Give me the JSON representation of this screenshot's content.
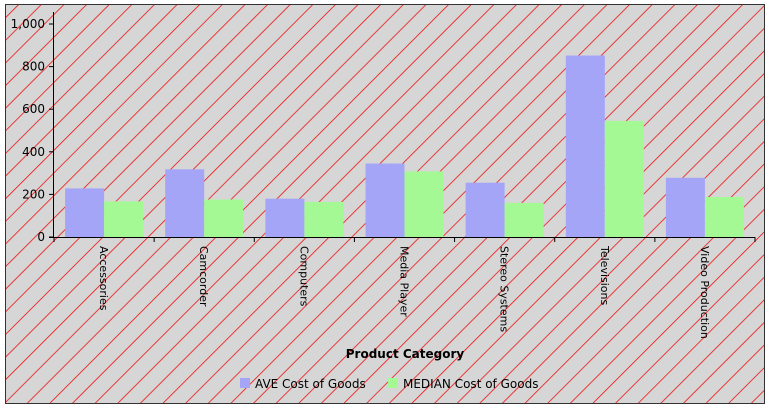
{
  "chart_data": {
    "type": "bar",
    "title": "",
    "xlabel": "Product Category",
    "ylabel": "",
    "categories": [
      "Accessories",
      "Camcorder",
      "Computers",
      "Media Player",
      "Stereo Systems",
      "Televisions",
      "Video Production"
    ],
    "series": [
      {
        "name": "AVE Cost of Goods",
        "color": "#A5A5F8",
        "values": [
          228,
          318,
          180,
          345,
          255,
          852,
          278
        ]
      },
      {
        "name": "MEDIAN Cost of Goods",
        "color": "#A5F995",
        "values": [
          167,
          176,
          165,
          308,
          160,
          545,
          188
        ]
      }
    ],
    "ylim": [
      0,
      1000
    ],
    "yticks": [
      0,
      200,
      400,
      600,
      800,
      1000
    ],
    "ytick_labels": [
      "0",
      "200",
      "400",
      "600",
      "800",
      "1,000"
    ],
    "grid": false,
    "legend_position": "bottom",
    "background": {
      "fill": "#D6D6D6",
      "hatch_color": "#EE1111",
      "border_color": "#333333"
    }
  }
}
